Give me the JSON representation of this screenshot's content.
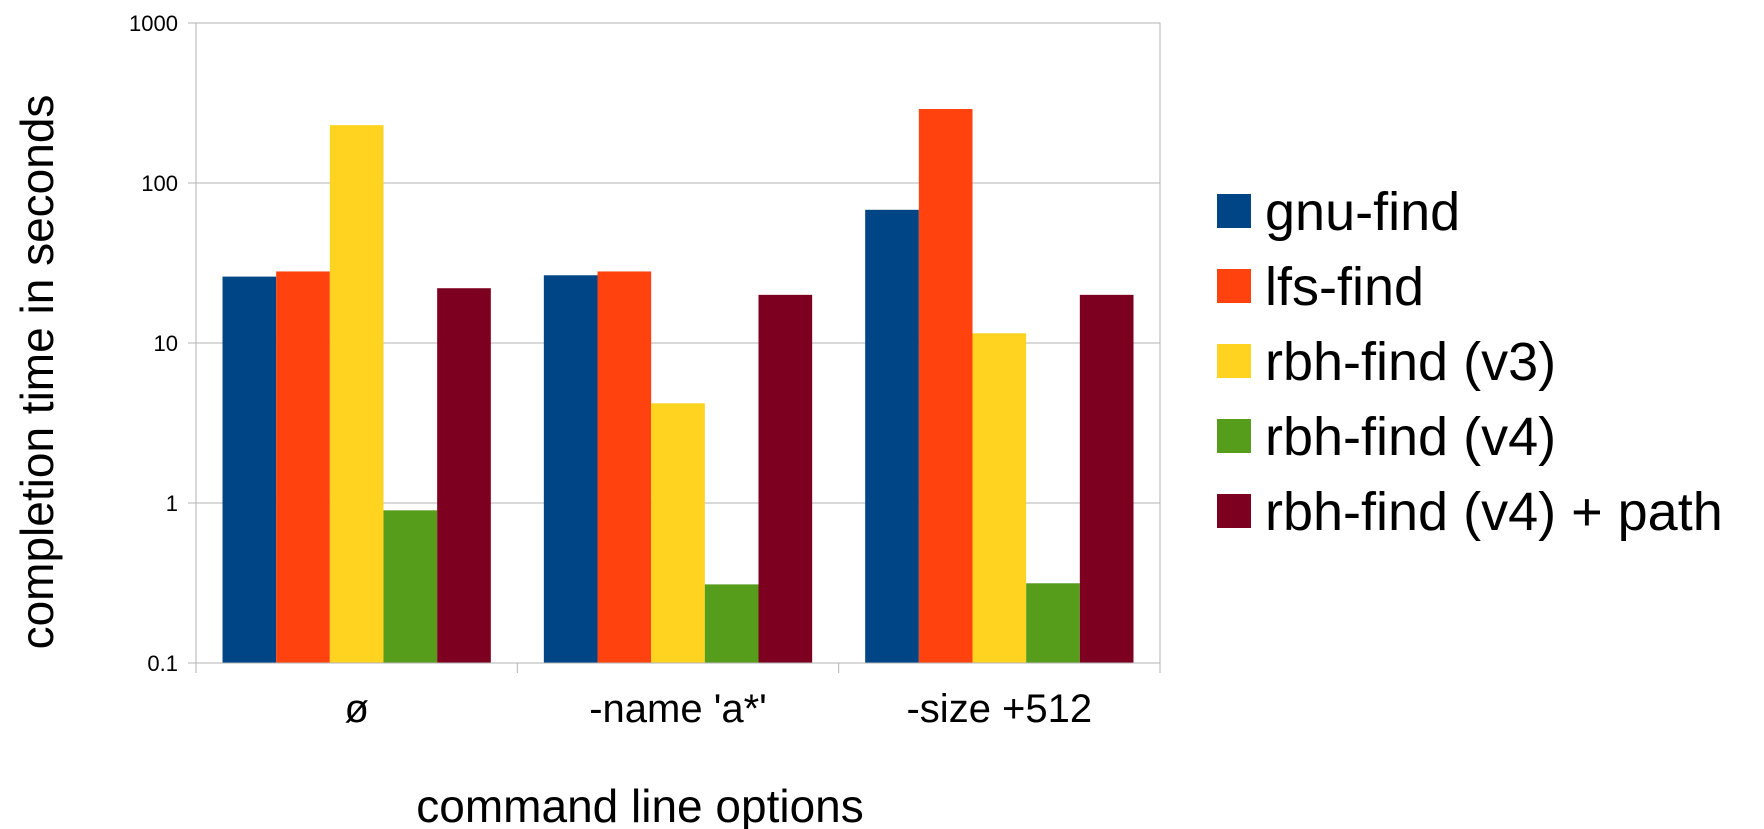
{
  "chart_data": {
    "type": "bar",
    "y_scale": "log",
    "ylim": [
      0.1,
      1000
    ],
    "yticks": [
      "0.1",
      "1",
      "10",
      "100",
      "1000"
    ],
    "xlabel": "command line options",
    "ylabel": "completion time in seconds",
    "categories": [
      "ø",
      "-name 'a*'",
      "-size +512"
    ],
    "grid": true,
    "legend_position": "right",
    "series": [
      {
        "name": "gnu-find",
        "color": "#004586",
        "values": [
          26,
          26.5,
          68
        ]
      },
      {
        "name": "lfs-find",
        "color": "#ff420e",
        "values": [
          28,
          28,
          290
        ]
      },
      {
        "name": "rbh-find (v3)",
        "color": "#ffd320",
        "values": [
          230,
          4.2,
          11.5
        ]
      },
      {
        "name": "rbh-find (v4)",
        "color": "#579d1c",
        "values": [
          0.9,
          0.31,
          0.315
        ]
      },
      {
        "name": "rbh-find (v4) + path",
        "color": "#7e0021",
        "values": [
          22,
          20,
          20
        ]
      }
    ]
  }
}
